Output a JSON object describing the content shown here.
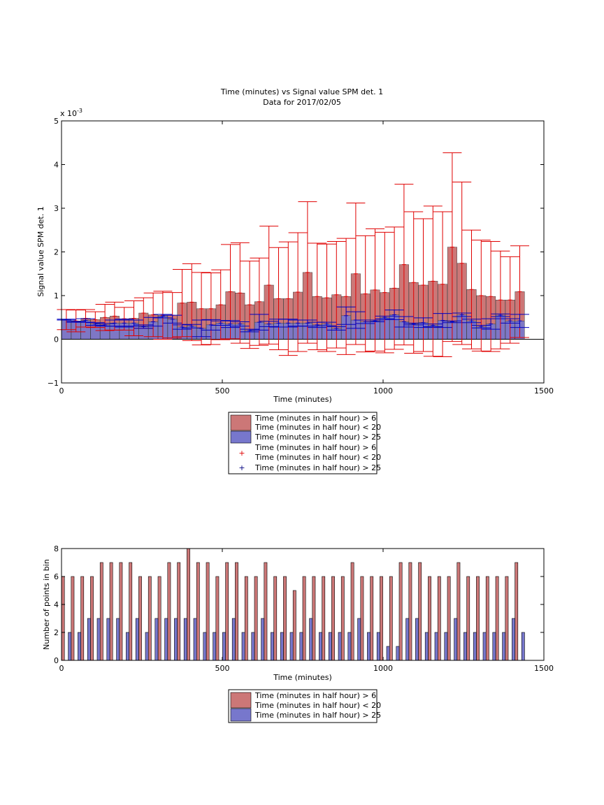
{
  "chart_data": [
    {
      "type": "bar",
      "title": "Time (minutes) vs Signal value SPM det. 1",
      "subtitle": "Data for 2017/02/05",
      "xlabel": "Time (minutes)",
      "ylabel": "Signal value SPM det. 1",
      "y_multiplier_label": "x 10",
      "y_multiplier_exponent": "-3",
      "xlim": [
        0,
        1500
      ],
      "ylim": [
        -1,
        5
      ],
      "xticks": [
        0,
        500,
        1000,
        1500
      ],
      "yticks": [
        -1,
        0,
        1,
        2,
        3,
        4,
        5
      ],
      "grid": false,
      "legend_position": "below",
      "x": [
        15,
        45,
        75,
        105,
        135,
        165,
        195,
        225,
        255,
        285,
        315,
        345,
        375,
        405,
        435,
        465,
        495,
        525,
        555,
        585,
        615,
        645,
        675,
        705,
        735,
        765,
        795,
        825,
        855,
        885,
        915,
        945,
        975,
        1005,
        1035,
        1065,
        1095,
        1125,
        1155,
        1185,
        1215,
        1245,
        1275,
        1305,
        1335,
        1365,
        1395,
        1425
      ],
      "series": [
        {
          "name": "Time (minutes in half hour) > 6",
          "name_line2": "Time (minutes in half hour) < 20",
          "color": "#cc7777",
          "values": [
            0.45,
            0.42,
            0.48,
            0.45,
            0.5,
            0.53,
            0.47,
            0.48,
            0.6,
            0.56,
            0.55,
            0.55,
            0.83,
            0.85,
            0.7,
            0.7,
            0.79,
            1.09,
            1.06,
            0.79,
            0.86,
            1.24,
            0.93,
            0.93,
            1.08,
            1.53,
            0.98,
            0.95,
            1.02,
            0.98,
            1.5,
            1.04,
            1.13,
            1.07,
            1.17,
            1.71,
            1.3,
            1.24,
            1.33,
            1.26,
            2.11,
            1.74,
            1.14,
            1.0,
            0.98,
            0.9,
            0.9,
            1.09
          ],
          "errors": [
            0.23,
            0.25,
            0.2,
            0.18,
            0.3,
            0.32,
            0.26,
            0.4,
            0.35,
            0.5,
            0.55,
            0.52,
            0.77,
            0.88,
            0.83,
            0.82,
            0.8,
            1.08,
            1.15,
            1.0,
            1.0,
            1.35,
            1.17,
            1.3,
            1.36,
            1.62,
            1.22,
            1.23,
            1.22,
            1.33,
            1.62,
            1.33,
            1.4,
            1.38,
            1.4,
            1.84,
            1.62,
            1.52,
            1.72,
            1.66,
            2.16,
            1.86,
            1.36,
            1.27,
            1.26,
            1.12,
            0.99,
            1.05
          ]
        },
        {
          "name": "Time (minutes in half hour) > 25",
          "color": "#7777cc",
          "values": [
            0.45,
            0.4,
            0.43,
            0.35,
            0.33,
            0.37,
            0.37,
            0.37,
            0.29,
            0.4,
            0.53,
            0.46,
            0.28,
            0.3,
            0.25,
            0.33,
            0.37,
            0.35,
            0.35,
            0.2,
            0.39,
            0.35,
            0.37,
            0.37,
            0.37,
            0.37,
            0.33,
            0.35,
            0.25,
            0.54,
            0.44,
            0.4,
            0.42,
            0.5,
            0.56,
            0.4,
            0.35,
            0.38,
            0.32,
            0.43,
            0.4,
            0.56,
            0.42,
            0.29,
            0.35,
            0.55,
            0.42,
            0.42
          ],
          "errors": [
            0.01,
            0.01,
            0.04,
            0.03,
            0.03,
            0.07,
            0.09,
            0.07,
            0.04,
            0.1,
            0.04,
            0.09,
            0.05,
            0.04,
            0.19,
            0.12,
            0.05,
            0.08,
            0.05,
            0.03,
            0.18,
            0.06,
            0.09,
            0.09,
            0.07,
            0.07,
            0.06,
            0.04,
            0.04,
            0.2,
            0.19,
            0.04,
            0.02,
            0.03,
            0.11,
            0.12,
            0.02,
            0.11,
            0.03,
            0.16,
            0.02,
            0.04,
            0.04,
            0.03,
            0.12,
            0.03,
            0.05,
            0.15
          ]
        }
      ],
      "legend_entries": [
        {
          "text": "Time (minutes in half hour) > 6",
          "marker": "red-patch"
        },
        {
          "text": "Time (minutes in half hour) < 20",
          "marker": "red-patch"
        },
        {
          "text": "Time (minutes in half hour) > 25",
          "marker": "blue-patch"
        },
        {
          "text": "Time (minutes in half hour) > 6",
          "marker": "none"
        },
        {
          "text": "Time (minutes in half hour) < 20",
          "marker": "red-plus"
        },
        {
          "text": "Time (minutes in half hour) > 25",
          "marker": "blue-plus"
        }
      ]
    },
    {
      "type": "bar",
      "xlabel": "Time (minutes)",
      "ylabel": "Number of points in bin",
      "xlim": [
        0,
        1500
      ],
      "ylim": [
        0,
        8
      ],
      "xticks": [
        0,
        500,
        1000,
        1500
      ],
      "yticks": [
        0,
        2,
        4,
        6,
        8
      ],
      "grid": false,
      "legend_position": "below",
      "x": [
        15,
        45,
        75,
        105,
        135,
        165,
        195,
        225,
        255,
        285,
        315,
        345,
        375,
        405,
        435,
        465,
        495,
        525,
        555,
        585,
        615,
        645,
        675,
        705,
        735,
        765,
        795,
        825,
        855,
        885,
        915,
        945,
        975,
        1005,
        1035,
        1065,
        1095,
        1125,
        1155,
        1185,
        1215,
        1245,
        1275,
        1305,
        1335,
        1365,
        1395,
        1425
      ],
      "series": [
        {
          "name": "Time (minutes in half hour) > 6",
          "name_line2": "Time (minutes in half hour) < 20",
          "color": "#cc7777",
          "values": [
            6,
            6,
            6,
            6,
            7,
            7,
            7,
            7,
            6,
            6,
            6,
            7,
            7,
            8,
            7,
            7,
            6,
            7,
            7,
            6,
            6,
            7,
            6,
            6,
            5,
            6,
            6,
            6,
            6,
            6,
            7,
            6,
            6,
            6,
            6,
            7,
            7,
            7,
            6,
            6,
            6,
            7,
            6,
            6,
            6,
            6,
            6,
            7
          ]
        },
        {
          "name": "Time (minutes in half hour) > 25",
          "color": "#7777cc",
          "values": [
            2,
            2,
            3,
            3,
            3,
            3,
            2,
            3,
            2,
            3,
            3,
            3,
            3,
            3,
            2,
            2,
            2,
            3,
            2,
            2,
            3,
            2,
            2,
            2,
            2,
            3,
            2,
            2,
            2,
            2,
            3,
            2,
            2,
            1,
            1,
            3,
            3,
            2,
            2,
            2,
            3,
            2,
            2,
            2,
            2,
            2,
            3,
            2
          ]
        }
      ],
      "legend_entries": [
        {
          "text": "Time (minutes in half hour) > 6",
          "marker": "red-patch"
        },
        {
          "text": "Time (minutes in half hour) < 20",
          "marker": "red-patch"
        },
        {
          "text": "Time (minutes in half hour) > 25",
          "marker": "blue-patch"
        }
      ]
    }
  ]
}
